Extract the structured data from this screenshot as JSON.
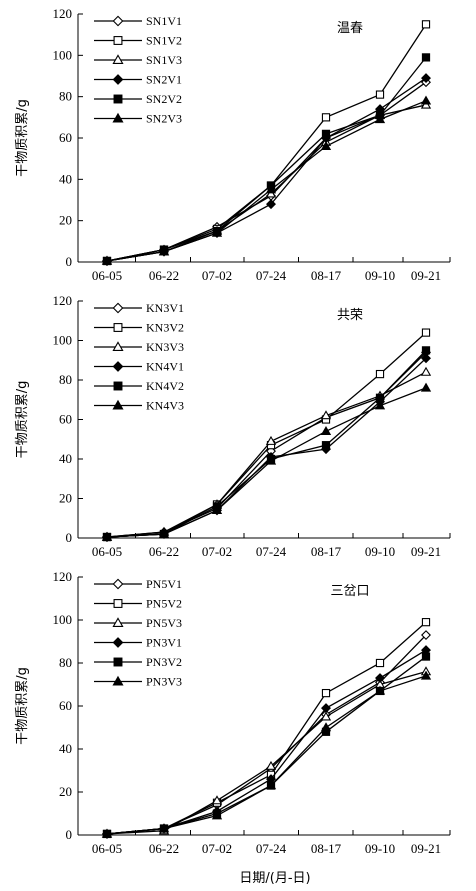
{
  "figure": {
    "xlabel": "日期/(月-日)"
  },
  "chart_data": [
    {
      "type": "line",
      "title": "温春",
      "ylabel": "干物质积累/g",
      "categories": [
        "06-05",
        "06-22",
        "07-02",
        "07-24",
        "08-17",
        "09-10",
        "09-21"
      ],
      "ylim": [
        0,
        120
      ],
      "yticks": [
        0,
        20,
        40,
        60,
        80,
        100,
        120
      ],
      "legend_position": "top-left",
      "series": [
        {
          "name": "SN1V1",
          "marker": "diamond-open",
          "values": [
            0.5,
            6,
            17,
            32,
            60,
            71,
            87
          ]
        },
        {
          "name": "SN1V2",
          "marker": "square-open",
          "values": [
            0.5,
            6,
            16,
            37,
            70,
            81,
            115
          ]
        },
        {
          "name": "SN1V3",
          "marker": "triangle-open",
          "values": [
            0.5,
            5,
            15,
            33,
            58,
            71,
            76
          ]
        },
        {
          "name": "SN2V1",
          "marker": "diamond-filled",
          "values": [
            0.5,
            5,
            14,
            28,
            60,
            74,
            89
          ]
        },
        {
          "name": "SN2V2",
          "marker": "square-filled",
          "values": [
            0.5,
            6,
            15,
            37,
            62,
            71,
            99
          ]
        },
        {
          "name": "SN2V3",
          "marker": "triangle-filled",
          "values": [
            0.5,
            5,
            14,
            35,
            56,
            69,
            78
          ]
        }
      ]
    },
    {
      "type": "line",
      "title": "共荣",
      "ylabel": "干物质积累/g",
      "categories": [
        "06-05",
        "06-22",
        "07-02",
        "07-24",
        "08-17",
        "09-10",
        "09-21"
      ],
      "ylim": [
        0,
        120
      ],
      "yticks": [
        0,
        20,
        40,
        60,
        80,
        100,
        120
      ],
      "legend_position": "top-left",
      "series": [
        {
          "name": "KN3V1",
          "marker": "diamond-open",
          "values": [
            0.5,
            3,
            15,
            44,
            61,
            71,
            94
          ]
        },
        {
          "name": "KN3V2",
          "marker": "square-open",
          "values": [
            0.5,
            2,
            17,
            47,
            60,
            83,
            104
          ]
        },
        {
          "name": "KN3V3",
          "marker": "triangle-open",
          "values": [
            0.5,
            3,
            17,
            49,
            62,
            72,
            84
          ]
        },
        {
          "name": "KN4V1",
          "marker": "diamond-filled",
          "values": [
            0.5,
            2,
            14,
            41,
            45,
            69,
            91
          ]
        },
        {
          "name": "KN4V2",
          "marker": "square-filled",
          "values": [
            0.5,
            2,
            16,
            40,
            47,
            71,
            95
          ]
        },
        {
          "name": "KN4V3",
          "marker": "triangle-filled",
          "values": [
            0.5,
            2,
            14,
            39,
            54,
            67,
            76
          ]
        }
      ]
    },
    {
      "type": "line",
      "title": "三岔口",
      "ylabel": "干物质积累/g",
      "categories": [
        "06-05",
        "06-22",
        "07-02",
        "07-24",
        "08-17",
        "09-10",
        "09-21"
      ],
      "ylim": [
        0,
        120
      ],
      "yticks": [
        0,
        20,
        40,
        60,
        80,
        100,
        120
      ],
      "legend_position": "top-left",
      "series": [
        {
          "name": "PN5V1",
          "marker": "diamond-open",
          "values": [
            0.5,
            3,
            14,
            31,
            56,
            71,
            93
          ]
        },
        {
          "name": "PN5V2",
          "marker": "square-open",
          "values": [
            0.5,
            3,
            15,
            28,
            66,
            80,
            99
          ]
        },
        {
          "name": "PN5V3",
          "marker": "triangle-open",
          "values": [
            0.5,
            2,
            16,
            32,
            55,
            70,
            76
          ]
        },
        {
          "name": "PN3V1",
          "marker": "diamond-filled",
          "values": [
            0.5,
            3,
            11,
            26,
            59,
            73,
            86
          ]
        },
        {
          "name": "PN3V2",
          "marker": "square-filled",
          "values": [
            0.5,
            3,
            10,
            23,
            48,
            67,
            83
          ]
        },
        {
          "name": "PN3V3",
          "marker": "triangle-filled",
          "values": [
            0.5,
            3,
            9,
            23,
            50,
            67,
            74
          ]
        }
      ]
    }
  ]
}
